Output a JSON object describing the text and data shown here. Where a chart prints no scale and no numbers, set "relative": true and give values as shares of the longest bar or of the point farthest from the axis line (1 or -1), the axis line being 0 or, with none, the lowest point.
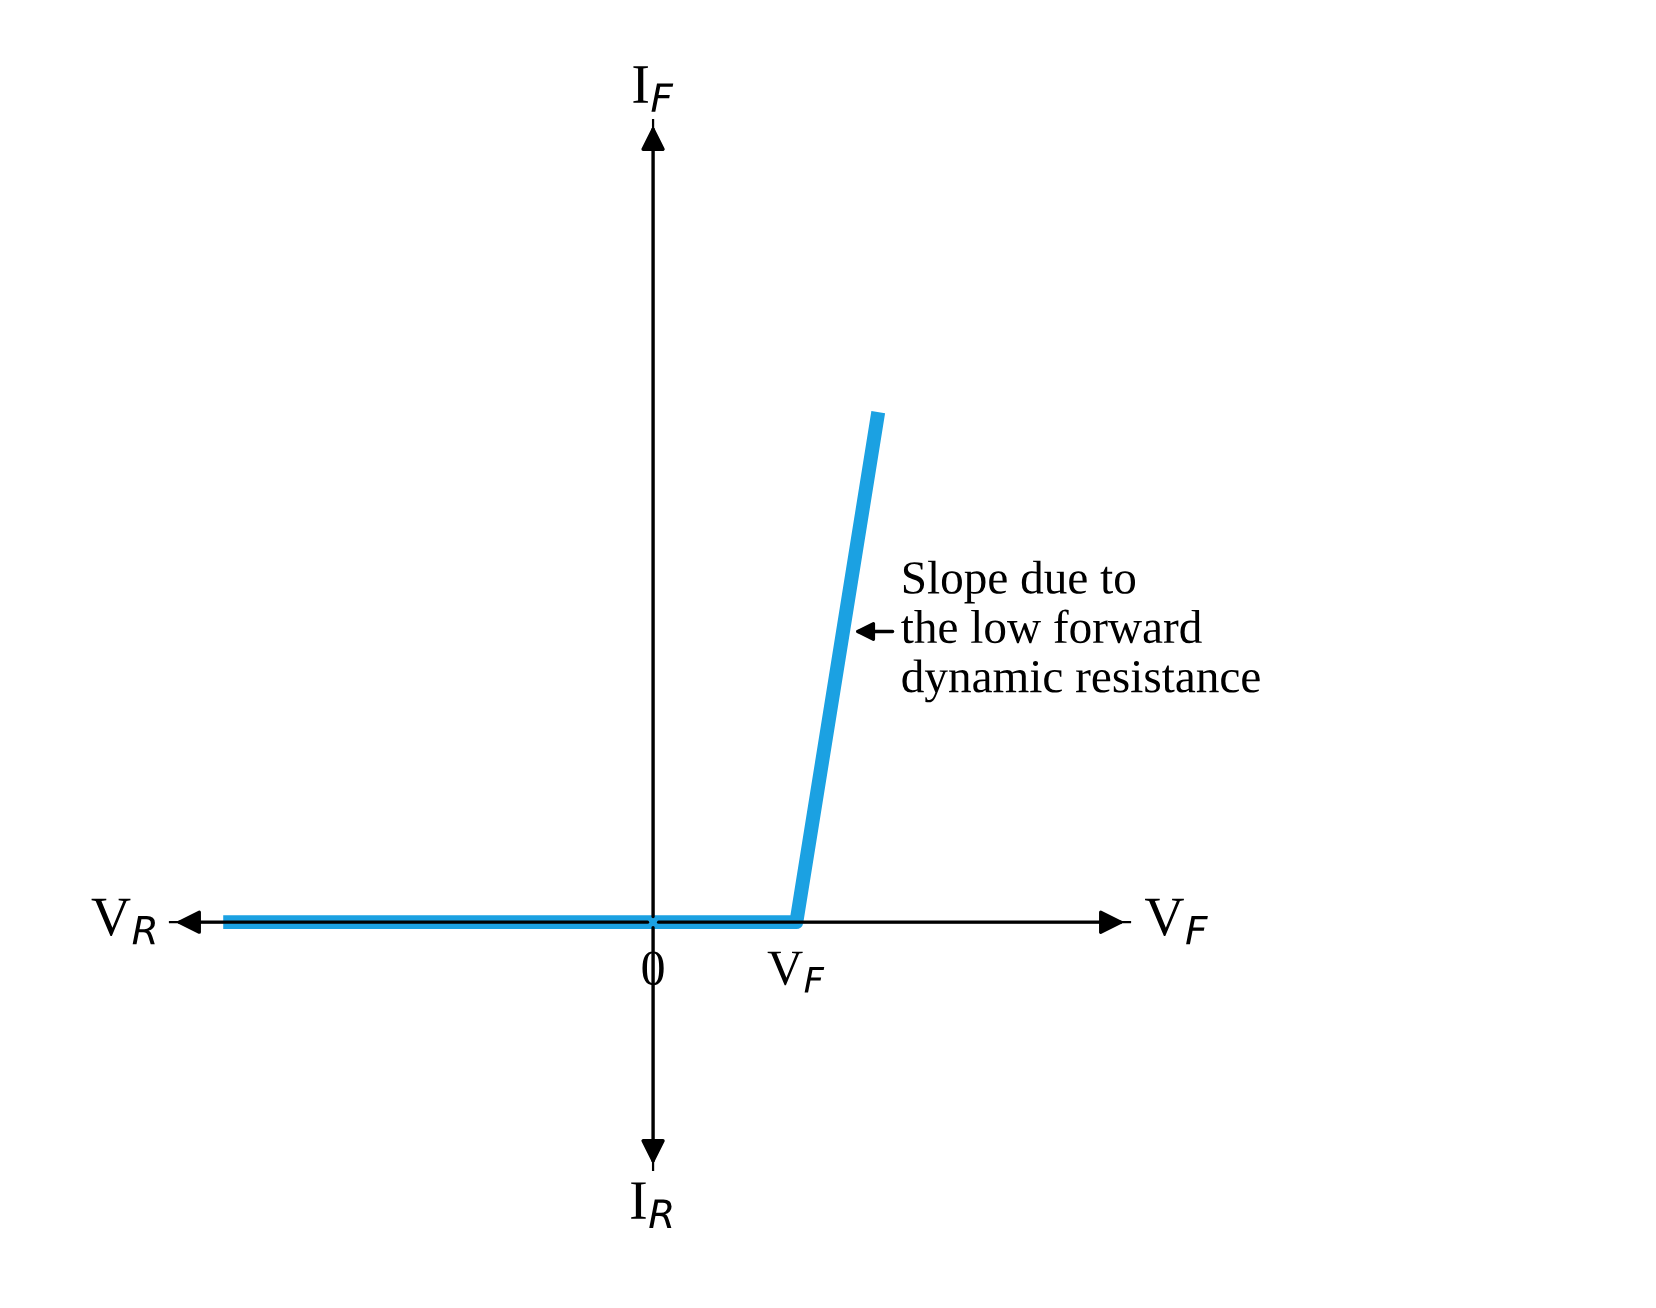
{
  "chart_data": {
    "type": "line",
    "relative": true,
    "categories": [
      null,
      null,
      null,
      null,
      null,
      null,
      null,
      null,
      null,
      null,
      null,
      null,
      null,
      null,
      null,
      null,
      null,
      null,
      null,
      null,
      null,
      "0",
      null,
      null,
      null,
      null,
      null,
      null,
      "V$_{F}$",
      null,
      null,
      null,
      null
    ],
    "series": [
      {
        "color": "#1ba1e2",
        "values": [
          0,
          0,
          0,
          0,
          0,
          0,
          0,
          0,
          0,
          0,
          0,
          0,
          0,
          0,
          0,
          0,
          0,
          0,
          0,
          0,
          0,
          0,
          0,
          0,
          0,
          0,
          0,
          0,
          0,
          0.25,
          0.5,
          0.75,
          1
        ]
      }
    ],
    "xlabel": "V$_{F}$",
    "annotations": [
      "Slope due to\nthe low forward\ndynamic resistance",
      "V$_{R}$",
      "I$_{R}$",
      "I$_{F}$"
    ],
    "grid": false,
    "legend": false,
    "marker": "none",
    "line_style": "solid"
  }
}
